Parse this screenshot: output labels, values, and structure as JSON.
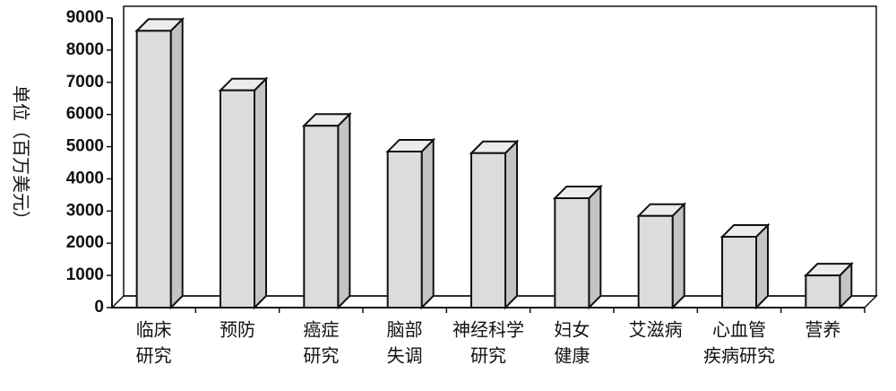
{
  "chart_data": {
    "type": "bar3d",
    "y_label": "单位（百万美元）",
    "categories": [
      [
        "临床",
        "研究"
      ],
      [
        "预防"
      ],
      [
        "癌症",
        "研究"
      ],
      [
        "脑部",
        "失调"
      ],
      [
        "神经科学",
        "研究"
      ],
      [
        "妇女",
        "健康"
      ],
      [
        "艾滋病"
      ],
      [
        "心血管",
        "疾病研究"
      ],
      [
        "营养"
      ]
    ],
    "values": [
      8600,
      6750,
      5650,
      4850,
      4800,
      3400,
      2850,
      2200,
      1000
    ],
    "color": "#dcdcdc",
    "ylim": [
      0,
      9000
    ],
    "yticks": [
      0,
      1000,
      2000,
      3000,
      4000,
      5000,
      6000,
      7000,
      8000,
      9000
    ]
  }
}
